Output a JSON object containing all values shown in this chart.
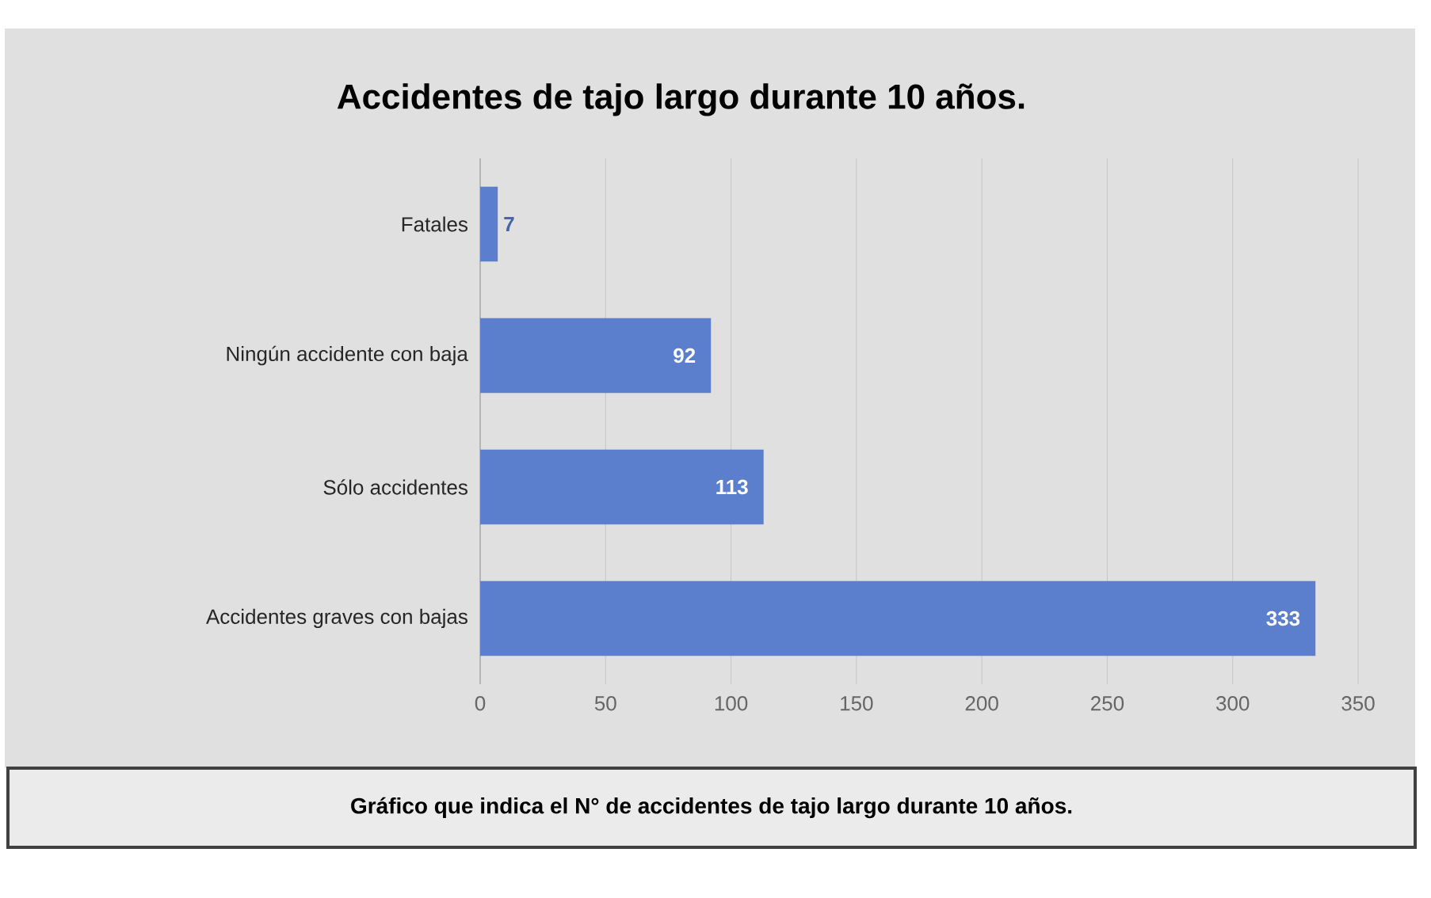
{
  "chart_data": {
    "type": "bar",
    "orientation": "horizontal",
    "title": "Accidentes de tajo largo durante 10 años.",
    "categories": [
      "Fatales",
      "Ningún accidente con baja",
      "Sólo accidentes",
      "Accidentes graves con bajas"
    ],
    "values": [
      7,
      92,
      113,
      333
    ],
    "value_labels": [
      "7",
      "92",
      "113",
      "333"
    ],
    "color": "#5b7fcc",
    "xlim": [
      0,
      350
    ],
    "xticks": [
      0,
      50,
      100,
      150,
      200,
      250,
      300,
      350
    ],
    "grid": "x",
    "annotations": [
      "Gráfico que indica el N° de accidentes de tajo largo durante 10 años."
    ]
  }
}
